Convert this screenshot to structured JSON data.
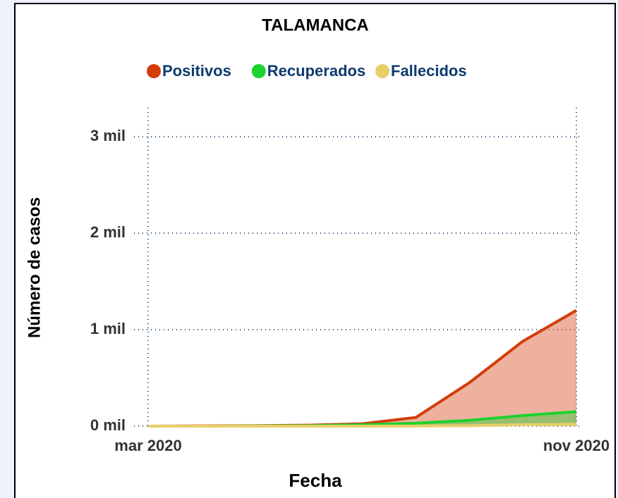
{
  "chart_data": {
    "type": "area",
    "title": "TALAMANCA",
    "x_label": "Fecha",
    "y_label": "Número de casos",
    "x": [
      "2020-03",
      "2020-04",
      "2020-05",
      "2020-06",
      "2020-07",
      "2020-08",
      "2020-09",
      "2020-10",
      "2020-11"
    ],
    "series": [
      {
        "name": "Positivos",
        "color": "#d23d0a",
        "values": [
          0,
          3,
          5,
          10,
          25,
          90,
          450,
          880,
          1200
        ]
      },
      {
        "name": "Recuperados",
        "color": "#1ed12e",
        "values": [
          0,
          0,
          2,
          5,
          15,
          30,
          60,
          110,
          150
        ]
      },
      {
        "name": "Fallecidos",
        "color": "#e8cf6a",
        "values": [
          0,
          0,
          0,
          0,
          0,
          2,
          5,
          15,
          20
        ]
      }
    ],
    "xlim": [
      "2020-03",
      "2020-11"
    ],
    "xticks": [
      {
        "value": "2020-03",
        "label": "mar 2020"
      },
      {
        "value": "2020-11",
        "label": "nov 2020"
      }
    ],
    "ylim": [
      0,
      3300
    ],
    "yticks": [
      {
        "value": 0,
        "label": "0 mil"
      },
      {
        "value": 1000,
        "label": "1 mil"
      },
      {
        "value": 2000,
        "label": "2 mil"
      },
      {
        "value": 3000,
        "label": "3 mil"
      }
    ],
    "grid": true,
    "legend": "top"
  }
}
